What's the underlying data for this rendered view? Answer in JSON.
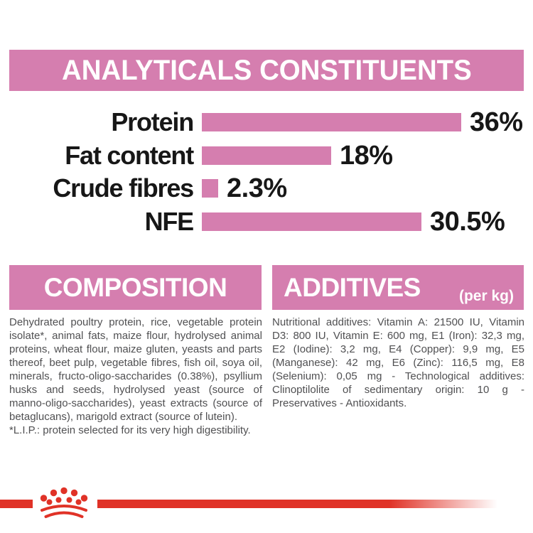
{
  "colors": {
    "pink": "#d57eaf",
    "red": "#e03227",
    "chart_text": "#171717",
    "body_text": "#505052",
    "banner_text": "#ffffff",
    "background": "#ffffff"
  },
  "header": {
    "title": "ANALYTICALS CONSTITUENTS"
  },
  "chart_data": {
    "type": "bar",
    "orientation": "horizontal",
    "title": "ANALYTICALS CONSTITUENTS",
    "categories": [
      "Protein",
      "Fat content",
      "Crude fibres",
      "NFE"
    ],
    "values": [
      36,
      18,
      2.3,
      30.5
    ],
    "value_labels": [
      "36%",
      "18%",
      "2.3%",
      "30.5%"
    ],
    "unit": "%",
    "bar_color": "#d57eaf",
    "axis_visible": false,
    "grid": false,
    "legend": false,
    "xlim": [
      0,
      40
    ]
  },
  "composition": {
    "title": "COMPOSITION",
    "body": "Dehydrated poultry protein, rice, vegetable protein isolate*, animal fats, maize flour, hydrolysed animal proteins, wheat flour, maize gluten, yeasts and parts thereof, beet pulp, vegetable fibres, fish oil, soya oil, minerals, fructo-oligo-saccharides (0.38%), psyllium husks and seeds, hydrolysed yeast (source of manno-oligo-saccharides), yeast extracts (source of betaglucans), marigold extract (source of lutein).",
    "note": "*L.I.P.: protein selected for its very high digestibility."
  },
  "additives": {
    "title": "ADDITIVES",
    "subtitle": "(per kg)",
    "body": "Nutritional additives: Vitamin A: 21500 IU, Vitamin D3: 800 IU, Vitamin E: 600 mg, E1 (Iron): 32,3 mg, E2 (Iodine): 3,2 mg, E4 (Copper): 9,9 mg, E5 (Manganese): 42 mg, E6 (Zinc): 116,5 mg, E8 (Selenium): 0,05 mg - Technological additives: Clinoptilolite of sedimentary origin: 10 g - Preservatives - Antioxidants."
  },
  "footer": {
    "logo": "royal-canin-crown"
  }
}
